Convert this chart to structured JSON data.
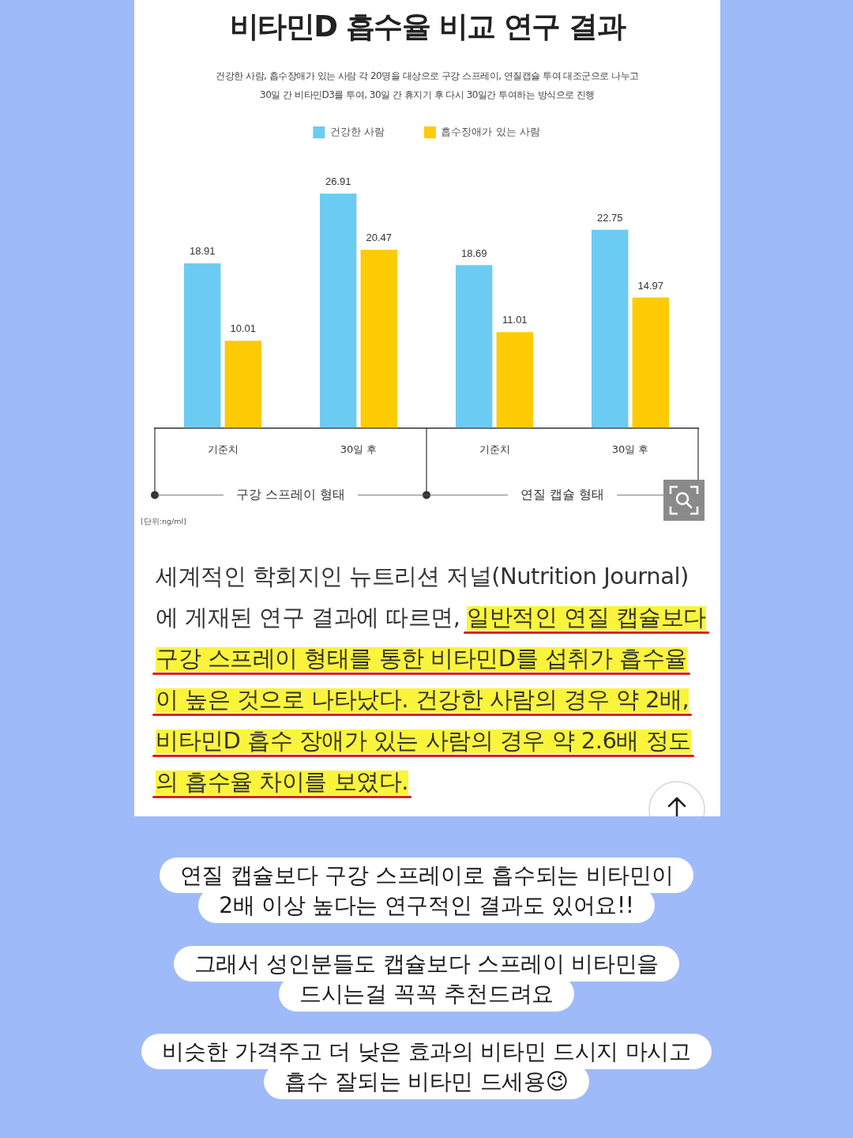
{
  "chart_data": {
    "type": "bar",
    "title": "비타민D 흡수율 비교 연구 결과",
    "subtitle": "건강한 사람, 흡수장애가 있는 사람 각 20명을 대상으로 구강 스프레이, 연질캡슐 투여 대조군으로 나누고\n30일 간 비타민D3를 투여, 30일 간 휴지기 후 다시 30일간 투여하는 방식으로 진행",
    "categories": [
      "기준치",
      "30일 후",
      "기준치",
      "30일 후"
    ],
    "series": [
      {
        "name": "건강한 사람",
        "color": "#6ccbf2",
        "values": [
          18.91,
          26.91,
          18.69,
          22.75
        ]
      },
      {
        "name": "흡수장애가 있는 사람",
        "color": "#ffcb05",
        "values": [
          10.01,
          20.47,
          11.01,
          14.97
        ]
      }
    ],
    "data_labels": true,
    "legend": "top",
    "tick_labels": "x",
    "annotations": [
      "구강 스프레이 형태",
      "연질 캡슐 형태",
      "[단위:ng/ml]",
      "세계적인 학회지인 뉴트리션 저널(Nutrition Journal)에 게재된 연구 결과에 따르면,",
      "일반적인 연질 캡슐보다 구강 스프레이 형태를 통한 비타민D를 섭취가 흡수율이 높은 것으로 나타났다. 건강한 사람의 경우 약 2배, 비타민D 흡수 장애가 있는 사람의 경우 약 2.6배 정도의 흡수율 차이를 보였다.",
      "연질 캡슐보다 구강 스프레이로 흡수되는 비타민이\n2배 이상 높다는 연구적인 결과도 있어요!!",
      "그래서 성인분들도 캡슐보다 스프레이 비타민을\n드시는걸 꼭꼭 추천드려요",
      "비슷한 가격주고 더 낮은 효과의 비타민 드시지 마시고\n흡수 잘되는 비타민 드세용😉"
    ]
  }
}
